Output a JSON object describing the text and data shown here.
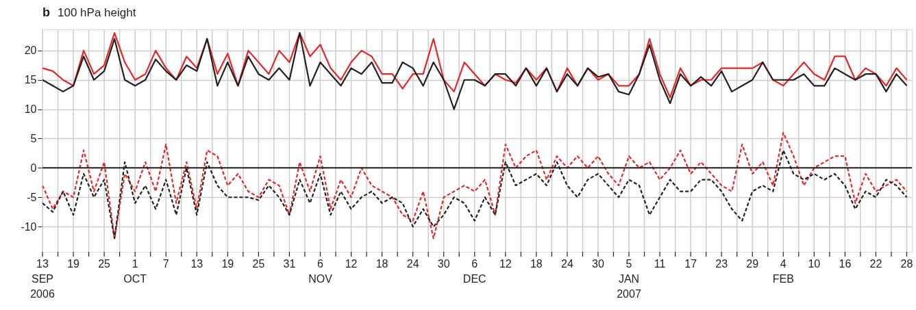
{
  "chart_data": {
    "type": "line",
    "title": "100 hPa height",
    "annotations": [
      "b"
    ],
    "x": [
      "2006-09-13",
      "2006-09-15",
      "2006-09-17",
      "2006-09-19",
      "2006-09-21",
      "2006-09-23",
      "2006-09-25",
      "2006-09-27",
      "2006-09-29",
      "2006-10-01",
      "2006-10-03",
      "2006-10-05",
      "2006-10-07",
      "2006-10-09",
      "2006-10-11",
      "2006-10-13",
      "2006-10-15",
      "2006-10-17",
      "2006-10-19",
      "2006-10-21",
      "2006-10-23",
      "2006-10-25",
      "2006-10-27",
      "2006-10-29",
      "2006-10-31",
      "2006-11-02",
      "2006-11-04",
      "2006-11-06",
      "2006-11-08",
      "2006-11-10",
      "2006-11-12",
      "2006-11-14",
      "2006-11-16",
      "2006-11-18",
      "2006-11-20",
      "2006-11-22",
      "2006-11-24",
      "2006-11-26",
      "2006-11-28",
      "2006-11-30",
      "2006-12-02",
      "2006-12-04",
      "2006-12-06",
      "2006-12-08",
      "2006-12-10",
      "2006-12-12",
      "2006-12-14",
      "2006-12-16",
      "2006-12-18",
      "2006-12-20",
      "2006-12-22",
      "2006-12-24",
      "2006-12-26",
      "2006-12-28",
      "2006-12-30",
      "2007-01-01",
      "2007-01-03",
      "2007-01-05",
      "2007-01-07",
      "2007-01-09",
      "2007-01-11",
      "2007-01-13",
      "2007-01-15",
      "2007-01-17",
      "2007-01-19",
      "2007-01-21",
      "2007-01-23",
      "2007-01-25",
      "2007-01-27",
      "2007-01-29",
      "2007-01-31",
      "2007-02-02",
      "2007-02-04",
      "2007-02-06",
      "2007-02-08",
      "2007-02-10",
      "2007-02-12",
      "2007-02-14",
      "2007-02-16",
      "2007-02-18",
      "2007-02-20",
      "2007-02-22",
      "2007-02-24",
      "2007-02-26",
      "2007-02-28"
    ],
    "series": [
      {
        "color": "#e8262a",
        "line_style": "solid",
        "values": [
          17,
          16.5,
          15,
          14,
          20,
          16,
          17.5,
          23,
          18,
          15,
          16,
          20,
          17,
          15,
          19,
          17,
          22,
          16,
          19.5,
          14,
          20,
          18,
          16,
          20,
          18,
          23,
          19,
          21,
          17,
          15,
          18,
          20,
          19,
          16,
          16,
          13.5,
          16,
          16,
          22,
          15,
          13,
          18,
          16,
          14,
          16,
          15,
          14.5,
          17,
          15,
          17,
          13,
          17,
          14,
          17,
          15,
          16,
          14,
          14,
          16,
          22,
          16,
          12,
          17,
          14,
          15,
          15,
          17,
          17,
          17,
          17,
          18,
          15,
          14,
          16,
          18,
          16,
          15,
          19,
          19,
          15,
          17,
          16,
          14,
          17,
          15
        ]
      },
      {
        "color": "#231f20",
        "line_style": "solid",
        "values": [
          15,
          14,
          13,
          14,
          19,
          15,
          16.5,
          22,
          15,
          14,
          15,
          18.5,
          16.5,
          15,
          17.5,
          16.5,
          22,
          14,
          18,
          14,
          19,
          16,
          15,
          17,
          15,
          23,
          14,
          18,
          16,
          14,
          17,
          16,
          18,
          14.5,
          14.5,
          18,
          17,
          14,
          18,
          15,
          10,
          15,
          15,
          14,
          16,
          16,
          14,
          17,
          14,
          17,
          13,
          16,
          14,
          17,
          15.5,
          16,
          13,
          12.5,
          16,
          21,
          15,
          11,
          16,
          14,
          15.5,
          14,
          16.5,
          13,
          14,
          15,
          18,
          15,
          15,
          15,
          16,
          14,
          14,
          17,
          16,
          15,
          16,
          16,
          13,
          16,
          14
        ]
      },
      {
        "color": "#e8262a",
        "line_style": "dashed",
        "values": [
          -3,
          -7,
          -4,
          -5,
          3,
          -4,
          1,
          -12,
          -1,
          -4,
          1,
          -4,
          4,
          -6,
          1,
          -7,
          3,
          2,
          -3,
          -1,
          -4,
          -5,
          -2,
          -3,
          -8,
          1,
          -4,
          2,
          -7,
          -2,
          -5,
          0,
          -3,
          -4,
          -5,
          -8,
          -9,
          -4,
          -12,
          -5,
          -4,
          -3,
          -4,
          -2,
          -8,
          4,
          0,
          2,
          3,
          -2,
          2,
          0,
          2,
          0,
          2,
          -1,
          -3,
          2,
          0,
          1,
          -2,
          0,
          3,
          -1,
          1,
          -1,
          -3,
          -4,
          4,
          -1,
          1,
          -3,
          6,
          2,
          -3,
          0,
          1,
          2,
          2,
          -6,
          -1,
          -4,
          -3,
          -2,
          -4
        ]
      },
      {
        "color": "#231f20",
        "line_style": "dashed",
        "values": [
          -6,
          -7.5,
          -4,
          -8,
          -1,
          -5,
          -2,
          -12,
          1,
          -6,
          -3,
          -7,
          -2,
          -8,
          0,
          -8,
          1,
          -3,
          -5,
          -5,
          -5,
          -5.5,
          -3,
          -5,
          -8,
          -2,
          -6,
          -1,
          -8,
          -4,
          -7,
          -5,
          -4,
          -6,
          -5,
          -6,
          -10,
          -7,
          -10,
          -8,
          -5,
          -6,
          -9,
          -5,
          -8,
          1,
          -3,
          -2,
          -1,
          -3,
          1,
          -3,
          -5,
          -2,
          -1,
          -3,
          -5,
          -2,
          -3,
          -8,
          -5,
          -2,
          -4,
          -4,
          -2,
          -2,
          -4,
          -7,
          -9,
          -4,
          -3,
          -4,
          3,
          -1,
          -2,
          -1,
          -2,
          -1,
          -3,
          -7,
          -4,
          -5,
          -2,
          -3,
          -5
        ]
      }
    ],
    "xlim": [
      "2006-09-13",
      "2007-03-01"
    ],
    "xticks": [
      {
        "value": "2006-09-13",
        "label": "13\nSEP\n2006"
      },
      {
        "value": "2006-09-16",
        "label": null
      },
      {
        "value": "2006-09-19",
        "label": "19"
      },
      {
        "value": "2006-09-22",
        "label": null
      },
      {
        "value": "2006-09-25",
        "label": "25"
      },
      {
        "value": "2006-09-28",
        "label": null
      },
      {
        "value": "2006-10-01",
        "label": "1\nOCT"
      },
      {
        "value": "2006-10-04",
        "label": null
      },
      {
        "value": "2006-10-07",
        "label": "7"
      },
      {
        "value": "2006-10-10",
        "label": null
      },
      {
        "value": "2006-10-13",
        "label": "13"
      },
      {
        "value": "2006-10-16",
        "label": null
      },
      {
        "value": "2006-10-19",
        "label": "19"
      },
      {
        "value": "2006-10-22",
        "label": null
      },
      {
        "value": "2006-10-25",
        "label": "25"
      },
      {
        "value": "2006-10-28",
        "label": null
      },
      {
        "value": "2006-10-31",
        "label": "31"
      },
      {
        "value": "2006-11-03",
        "label": null
      },
      {
        "value": "2006-11-06",
        "label": "6\nNOV"
      },
      {
        "value": "2006-11-09",
        "label": null
      },
      {
        "value": "2006-11-12",
        "label": "12"
      },
      {
        "value": "2006-11-15",
        "label": null
      },
      {
        "value": "2006-11-18",
        "label": "18"
      },
      {
        "value": "2006-11-21",
        "label": null
      },
      {
        "value": "2006-11-24",
        "label": "24"
      },
      {
        "value": "2006-11-27",
        "label": null
      },
      {
        "value": "2006-11-30",
        "label": "30"
      },
      {
        "value": "2006-12-03",
        "label": null
      },
      {
        "value": "2006-12-06",
        "label": "6\nDEC"
      },
      {
        "value": "2006-12-09",
        "label": null
      },
      {
        "value": "2006-12-12",
        "label": "12"
      },
      {
        "value": "2006-12-15",
        "label": null
      },
      {
        "value": "2006-12-18",
        "label": "18"
      },
      {
        "value": "2006-12-21",
        "label": null
      },
      {
        "value": "2006-12-24",
        "label": "24"
      },
      {
        "value": "2006-12-27",
        "label": null
      },
      {
        "value": "2006-12-30",
        "label": "30"
      },
      {
        "value": "2007-01-02",
        "label": null
      },
      {
        "value": "2007-01-05",
        "label": "5\nJAN\n2007"
      },
      {
        "value": "2007-01-08",
        "label": null
      },
      {
        "value": "2007-01-11",
        "label": "11"
      },
      {
        "value": "2007-01-14",
        "label": null
      },
      {
        "value": "2007-01-17",
        "label": "17"
      },
      {
        "value": "2007-01-20",
        "label": null
      },
      {
        "value": "2007-01-23",
        "label": "23"
      },
      {
        "value": "2007-01-26",
        "label": null
      },
      {
        "value": "2007-01-29",
        "label": "29"
      },
      {
        "value": "2007-02-01",
        "label": null
      },
      {
        "value": "2007-02-04",
        "label": "4\nFEB"
      },
      {
        "value": "2007-02-07",
        "label": null
      },
      {
        "value": "2007-02-10",
        "label": "10"
      },
      {
        "value": "2007-02-13",
        "label": null
      },
      {
        "value": "2007-02-16",
        "label": "16"
      },
      {
        "value": "2007-02-19",
        "label": null
      },
      {
        "value": "2007-02-22",
        "label": "22"
      },
      {
        "value": "2007-02-25",
        "label": null
      },
      {
        "value": "2007-02-28",
        "label": "28"
      }
    ],
    "ylim": [
      -14.3,
      23.6
    ],
    "yticks": [
      -10,
      -5,
      0,
      5,
      10,
      15,
      20
    ],
    "ref_lines": [
      {
        "axis": "y",
        "value": 0,
        "color": "#231f20"
      }
    ],
    "grid": true
  }
}
